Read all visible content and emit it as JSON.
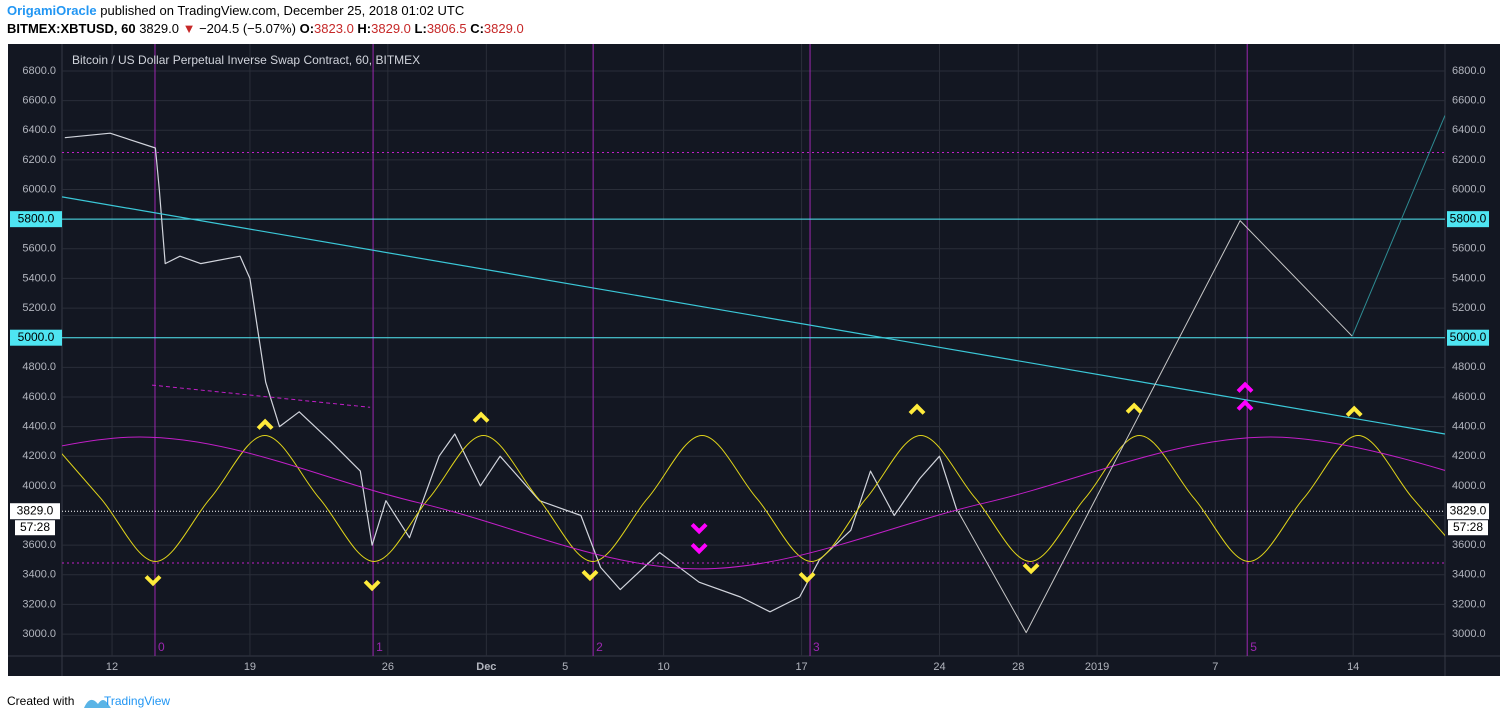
{
  "header": {
    "author": "OrigamiOracle",
    "published": "published on TradingView.com, December 25, 2018 01:02 UTC",
    "symbol": "BITMEX:XBTUSD, 60",
    "last": "3829.0",
    "arrow": "▼",
    "change": "−204.5 (−5.07%)",
    "ohlc": [
      {
        "key": "O:",
        "value": "3823.0"
      },
      {
        "key": "H:",
        "value": "3829.0"
      },
      {
        "key": "L:",
        "value": "3806.5"
      },
      {
        "key": "C:",
        "value": "3829.0"
      }
    ]
  },
  "footer": {
    "text": "Created with",
    "brand": "TradingView"
  },
  "chart_data": {
    "type": "line",
    "title": "Bitcoin / US Dollar Perpetual Inverse Swap Contract, 60, BITMEX",
    "xlim": [
      9.46,
      79.66
    ],
    "ylim": [
      2852,
      6982
    ],
    "xticks": [
      12,
      19,
      26,
      {
        "value": 31,
        "label": "Dec"
      },
      {
        "value": 35,
        "label": "5"
      },
      {
        "value": 40,
        "label": "10"
      },
      {
        "value": 47,
        "label": "17"
      },
      {
        "value": 54,
        "label": "24"
      },
      {
        "value": 58,
        "label": "28"
      },
      {
        "value": 62,
        "label": "2019"
      },
      {
        "value": 68,
        "label": "7"
      },
      {
        "value": 75,
        "label": "14"
      }
    ],
    "yticks": [
      {
        "value": 3000,
        "label": "3000.0"
      },
      {
        "value": 3200,
        "label": "3200.0"
      },
      {
        "value": 3400,
        "label": "3400.0"
      },
      {
        "value": 3600,
        "label": "3600.0"
      },
      {
        "value": 3800,
        "label": "3800.0"
      },
      {
        "value": 4000,
        "label": "4000.0"
      },
      {
        "value": 4200,
        "label": "4200.0"
      },
      {
        "value": 4400,
        "label": "4400.0"
      },
      {
        "value": 4600,
        "label": "4600.0"
      },
      {
        "value": 4800,
        "label": "4800.0"
      },
      {
        "value": 5000,
        "label": "5000.0"
      },
      {
        "value": 5200,
        "label": "5200.0"
      },
      {
        "value": 5400,
        "label": "5400.0"
      },
      {
        "value": 5600,
        "label": "5600.0"
      },
      {
        "value": 5800,
        "label": "5800.0"
      },
      {
        "value": 6000,
        "label": "6000.0"
      },
      {
        "value": 6200,
        "label": "6200.0"
      },
      {
        "value": 6400,
        "label": "6400.0"
      },
      {
        "value": 6600,
        "label": "6600.0"
      },
      {
        "value": 6800,
        "label": "6800.0"
      }
    ],
    "grid": true,
    "series": [
      {
        "color": "#d1d4dc",
        "width": 1.2,
        "x": [
          9.6,
          11.9,
          14.2,
          14.4,
          14.7,
          15.45,
          16.5,
          18.5,
          19.0,
          19.8,
          20.5,
          21.5,
          23.1,
          24.6,
          25.2,
          25.9,
          27.1,
          28.6,
          29.4,
          30.7,
          31.7,
          33.7,
          35.8,
          36.8,
          37.8,
          39.8,
          41.8,
          43.9,
          45.4,
          46.9,
          47.9,
          49.5,
          50.5,
          51.7,
          53.0,
          54.0,
          54.9
        ],
        "values": [
          6350,
          6380,
          6280,
          6000,
          5500,
          5550,
          5500,
          5550,
          5400,
          4700,
          4400,
          4500,
          4300,
          4100,
          3600,
          3900,
          3650,
          4200,
          4350,
          4000,
          4200,
          3900,
          3800,
          3450,
          3300,
          3550,
          3350,
          3250,
          3150,
          3250,
          3500,
          3700,
          4100,
          3800,
          4050,
          4200,
          3829
        ]
      },
      {
        "color": "#e0d41a",
        "width": 1,
        "smooth": true,
        "x": [
          8.65,
          11.43,
          14.2,
          16.98,
          19.75,
          22.53,
          25.3,
          28.08,
          30.85,
          33.63,
          36.4,
          39.18,
          41.95,
          44.73,
          47.5,
          50.28,
          53.05,
          55.83,
          58.6,
          61.38,
          64.15,
          66.93,
          69.7,
          72.48,
          75.25,
          78.03,
          80.8
        ],
        "values": [
          4340,
          3915,
          3490,
          3915,
          4340,
          3915,
          3490,
          3915,
          4340,
          3915,
          3490,
          3915,
          4340,
          3915,
          3490,
          3915,
          4340,
          3915,
          3490,
          3915,
          4340,
          3915,
          3490,
          3915,
          4340,
          3915,
          3490
        ]
      },
      {
        "color": "#c21fc8",
        "width": 1,
        "smooth": true,
        "x": [
          -0.9,
          13.4,
          27.6,
          41.85,
          56.3,
          70.8,
          85.1
        ],
        "values": [
          3885,
          4330,
          3885,
          3440,
          3885,
          4330,
          3885
        ]
      },
      {
        "color": "#3bc8d8",
        "width": 1.2,
        "x": [
          9.46,
          79.66
        ],
        "values": [
          5950,
          4350
        ]
      },
      {
        "color": "#c21fc8",
        "width": 1,
        "dash": "4 3",
        "x": [
          14.03,
          25.1
        ],
        "values": [
          4680,
          4530
        ]
      },
      {
        "color": "#c8c8c8",
        "width": 1,
        "x": [
          54.94,
          58.4,
          69.26,
          74.95
        ],
        "values": [
          3829,
          3010,
          5790,
          5010
        ]
      },
      {
        "color": "#2e8c93",
        "width": 1,
        "x": [
          74.95,
          79.66
        ],
        "values": [
          5010,
          6500
        ]
      }
    ],
    "hlines": [
      {
        "value": 5800,
        "label": "5800.0",
        "color": "#4ee5f2"
      },
      {
        "value": 5000,
        "label": "5000.0",
        "color": "#4ee5f2"
      },
      {
        "value": 6250,
        "color": "#c21fc8",
        "dash": "2 3"
      },
      {
        "value": 3480,
        "color": "#c21fc8",
        "dash": "2 3"
      }
    ],
    "last_price": {
      "value": 3829,
      "label": "3829.0",
      "countdown": "57:28"
    },
    "vlines": [
      {
        "x": 14.18,
        "label": "0"
      },
      {
        "x": 25.25,
        "label": "1"
      },
      {
        "x": 36.42,
        "label": "2"
      },
      {
        "x": 47.43,
        "label": "3"
      },
      {
        "x": 69.62,
        "label": "5"
      }
    ],
    "vline_color": "#9c27b0",
    "markers": [
      {
        "color": "#ffeb3b",
        "shape": "down",
        "x": [
          14.08,
          25.2,
          36.26,
          47.28,
          58.65
        ],
        "values": [
          3365,
          3332,
          3400,
          3386,
          3446
        ]
      },
      {
        "color": "#ffeb3b",
        "shape": "up",
        "x": [
          19.77,
          30.73,
          52.86,
          63.88,
          75.05
        ],
        "values": [
          4411,
          4459,
          4513,
          4520,
          4499
        ]
      },
      {
        "color": "#ff00ff",
        "shape": "down",
        "x": [
          41.8,
          41.8
        ],
        "values": [
          3716,
          3581
        ]
      },
      {
        "color": "#ff00ff",
        "shape": "up",
        "x": [
          69.51,
          69.51
        ],
        "values": [
          4661,
          4540
        ]
      }
    ]
  }
}
